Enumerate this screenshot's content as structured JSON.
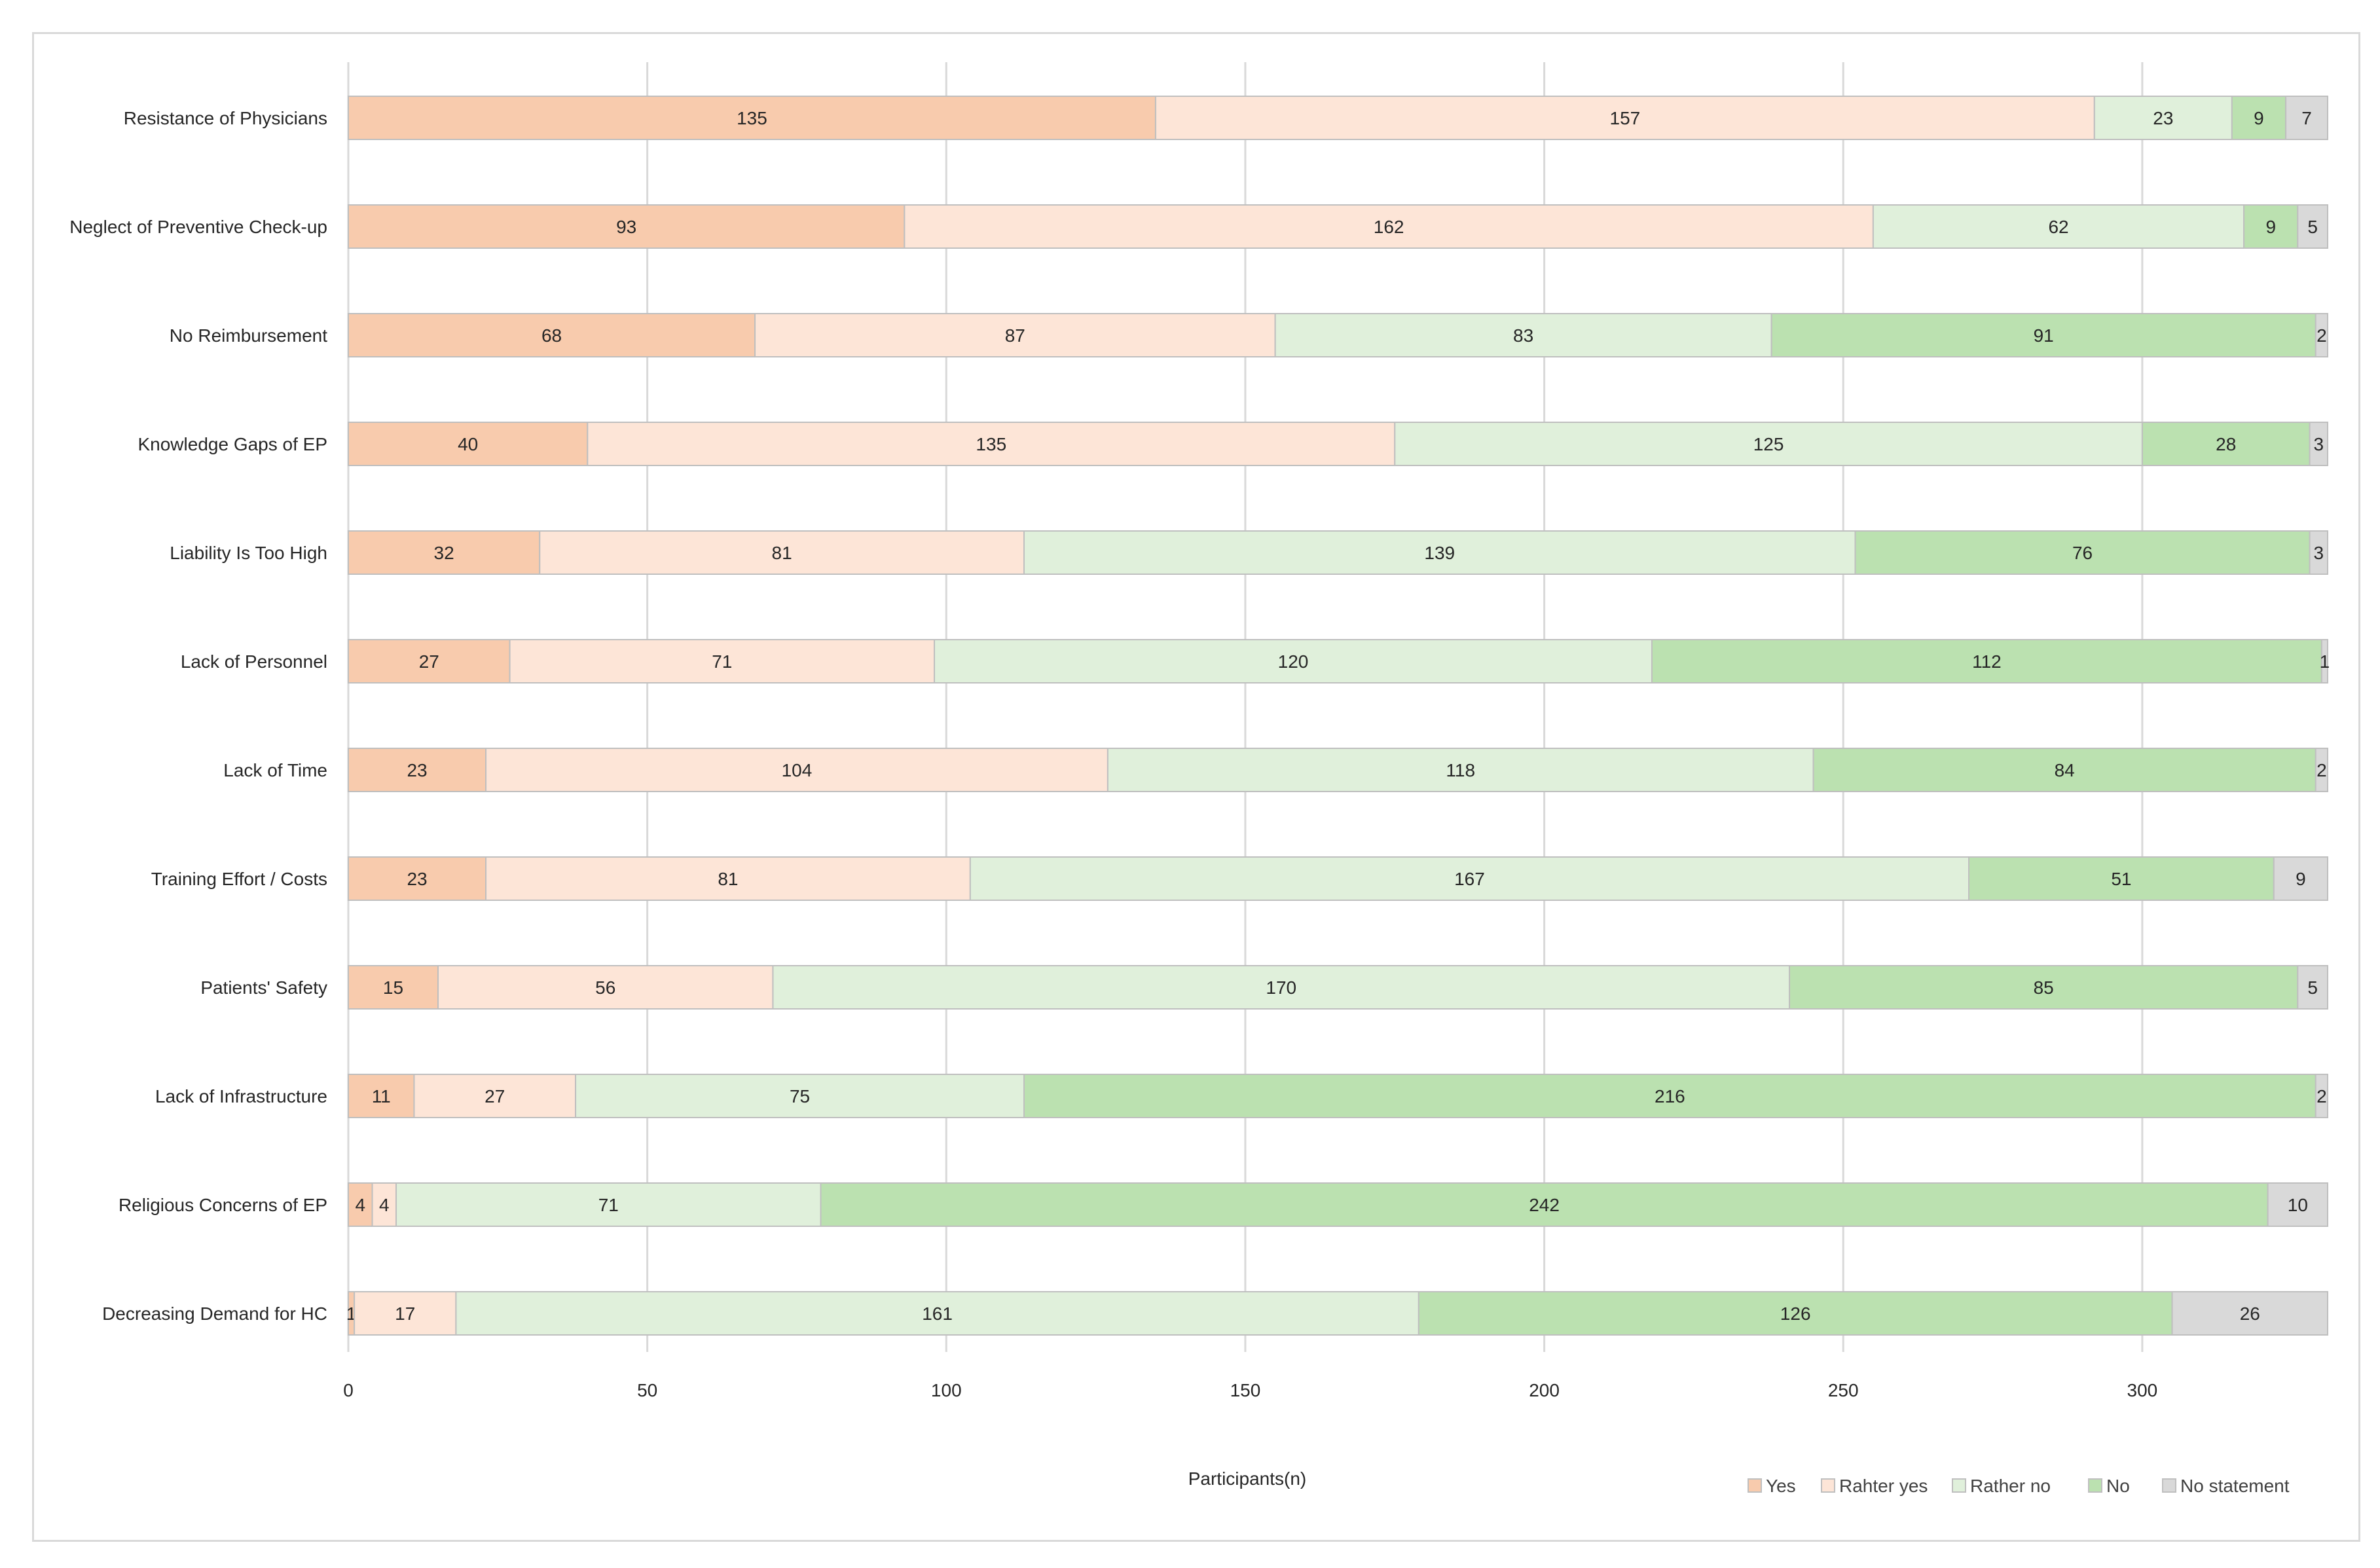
{
  "chart_data": {
    "type": "bar",
    "orientation": "horizontal",
    "stacked": true,
    "title": "",
    "xlabel": "Participants(n)",
    "ylabel": "",
    "xlim": [
      0,
      331
    ],
    "xticks": [
      0,
      50,
      100,
      150,
      200,
      250,
      300
    ],
    "grid": true,
    "legend_position": "bottom-right",
    "categories": [
      "Resistance of Physicians",
      "Neglect of Preventive Check-up",
      "No Reimbursement",
      "Knowledge Gaps of EP",
      "Liability Is Too High",
      "Lack of Personnel",
      "Lack of Time",
      "Training Effort / Costs",
      "Patients' Safety",
      "Lack of Infrastructure",
      "Religious Concerns of EP",
      "Decreasing Demand for HC"
    ],
    "series": [
      {
        "name": "Yes",
        "color": "#f8cbad",
        "values": [
          135,
          93,
          68,
          40,
          32,
          27,
          23,
          23,
          15,
          11,
          4,
          1
        ]
      },
      {
        "name": "Rahter yes",
        "color": "#fde5d7",
        "values": [
          157,
          162,
          87,
          135,
          81,
          71,
          104,
          81,
          56,
          27,
          4,
          17
        ]
      },
      {
        "name": "Rather no",
        "color": "#e0f0db",
        "values": [
          23,
          62,
          83,
          125,
          139,
          120,
          118,
          167,
          170,
          75,
          71,
          161
        ]
      },
      {
        "name": "No",
        "color": "#bbe1b0",
        "values": [
          9,
          9,
          91,
          28,
          76,
          112,
          84,
          51,
          85,
          216,
          242,
          126
        ]
      },
      {
        "name": "No statement",
        "color": "#d9d9d9",
        "values": [
          7,
          5,
          2,
          3,
          3,
          1,
          2,
          9,
          5,
          2,
          10,
          26
        ]
      }
    ]
  }
}
